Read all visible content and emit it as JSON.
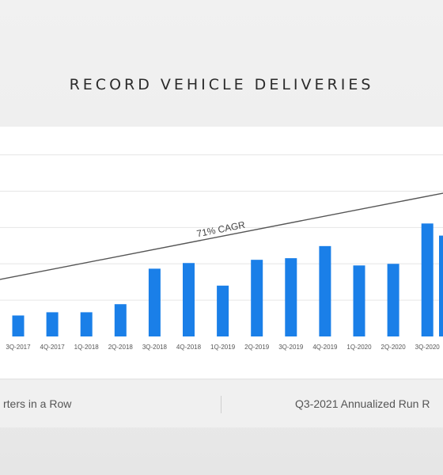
{
  "title": "RECORD VEHICLE DELIVERIES",
  "footer": {
    "left_caption": "rters in a Row",
    "right_caption": "Q3-2021 Annualized Run R"
  },
  "colors": {
    "bar": "#1a7fe8",
    "trend": "#555555",
    "grid": "#e6e6e6"
  },
  "chart_data": {
    "type": "bar",
    "title": "RECORD VEHICLE DELIVERIES",
    "categories": [
      "3Q-2017",
      "4Q-2017",
      "1Q-2018",
      "2Q-2018",
      "3Q-2018",
      "4Q-2018",
      "1Q-2019",
      "2Q-2019",
      "3Q-2019",
      "4Q-2019",
      "1Q-2020",
      "2Q-2020",
      "3Q-2020"
    ],
    "values": [
      26,
      30,
      30,
      40,
      84,
      91,
      63,
      95,
      97,
      112,
      88,
      90,
      140
    ],
    "ylim": [
      0,
      260
    ],
    "grid": true,
    "annotations": [
      {
        "type": "trendline",
        "label": "71% CAGR"
      }
    ]
  }
}
